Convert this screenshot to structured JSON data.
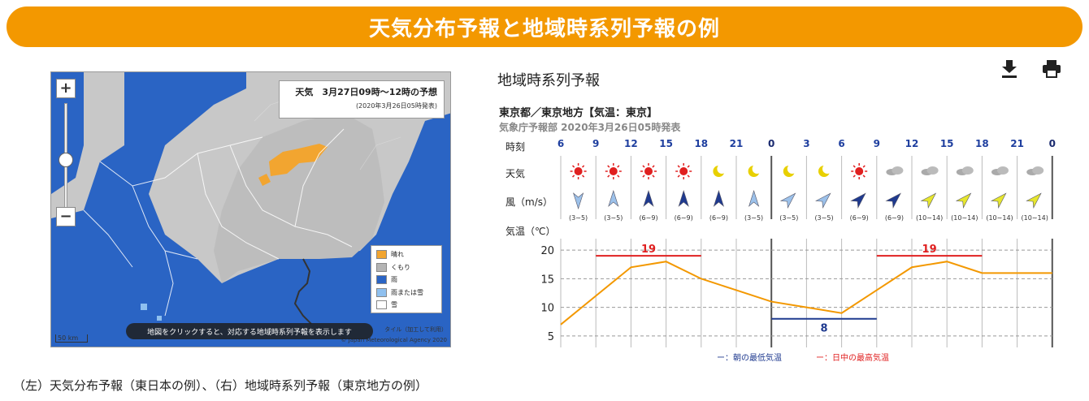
{
  "banner": {
    "title": "天気分布予報と地域時系列予報の例"
  },
  "map": {
    "zoom_in": "+",
    "zoom_out": "−",
    "info_title": "天気　3月27日09時～12時の予想",
    "info_sub": "(2020年3月26日05時発表)",
    "legend": [
      {
        "label": "晴れ",
        "color": "#f2a530"
      },
      {
        "label": "くもり",
        "color": "#b4b4b4"
      },
      {
        "label": "雨",
        "color": "#2a64c4"
      },
      {
        "label": "雨または雪",
        "color": "#8fc0ef"
      },
      {
        "label": "雪",
        "color": "#ffffff"
      }
    ],
    "hint": "地図をクリックすると、対応する地域時系列予報を表示します",
    "attribution_style": "タイル（加工して利用）",
    "attribution_agency": "© Japan Meteorological Agency 2020",
    "scale": "50 km"
  },
  "panel": {
    "title": "地域時系列予報",
    "download_icon": "download-icon",
    "print_icon": "print-icon",
    "region": "東京都／東京地方【気温：東京】",
    "issued": "気象庁予報部 2020年3月26日05時発表",
    "row_labels": {
      "time": "時刻",
      "weather": "天気",
      "wind": "風（m/s）",
      "temp": "気温（℃）"
    },
    "times": [
      "6",
      "9",
      "12",
      "15",
      "18",
      "21",
      "0",
      "3",
      "6",
      "9",
      "12",
      "15",
      "18",
      "21",
      "0"
    ],
    "weather": [
      "sun",
      "sun",
      "sun",
      "sun",
      "moon",
      "moon",
      "moon",
      "moon",
      "sun",
      "cloud",
      "cloud",
      "cloud",
      "cloud",
      "cloud"
    ],
    "wind_speed": [
      "(3∼5)",
      "(3∼5)",
      "(6∼9)",
      "(6∼9)",
      "(6∼9)",
      "(3∼5)",
      "(3∼5)",
      "(3∼5)",
      "(6∼9)",
      "(6∼9)",
      "(10∼14)",
      "(10∼14)",
      "(10∼14)",
      "(10∼14)"
    ],
    "wind_color": [
      "#9cc1ea",
      "#9cc1ea",
      "#1f3a8f",
      "#1f3a8f",
      "#1f3a8f",
      "#9cc1ea",
      "#9cc1ea",
      "#9cc1ea",
      "#1f3a8f",
      "#1f3a8f",
      "#e6e62e",
      "#e6e62e",
      "#e6e62e",
      "#e6e62e"
    ],
    "wind_dir": [
      180,
      0,
      0,
      0,
      0,
      0,
      45,
      45,
      45,
      45,
      45,
      45,
      45,
      45
    ],
    "legend_low": "ー：朝の最低気温",
    "legend_high": "ー：日中の最高気温"
  },
  "chart_data": {
    "type": "line",
    "x": [
      "6",
      "9",
      "12",
      "15",
      "18",
      "21",
      "0",
      "3",
      "6",
      "9",
      "12",
      "15",
      "18",
      "21",
      "0"
    ],
    "series": [
      {
        "values": [
          7,
          12,
          17,
          18,
          15,
          13,
          11,
          10,
          9,
          13,
          17,
          18,
          16,
          16,
          16
        ]
      }
    ],
    "max_temp": [
      {
        "value": 19,
        "from": 1,
        "to": 4
      },
      {
        "value": 19,
        "from": 9,
        "to": 12
      }
    ],
    "min_temp": [
      {
        "value": 8,
        "from": 6,
        "to": 9
      }
    ],
    "yticks": [
      20,
      15,
      10,
      5
    ],
    "ylim": [
      3,
      22
    ],
    "ylabel": "気温（℃）",
    "colors": {
      "line": "#f39800",
      "max": "#e02020",
      "min": "#1f3a8f"
    }
  },
  "caption": "（左）天気分布予報（東日本の例）、（右）地域時系列予報（東京地方の例）"
}
